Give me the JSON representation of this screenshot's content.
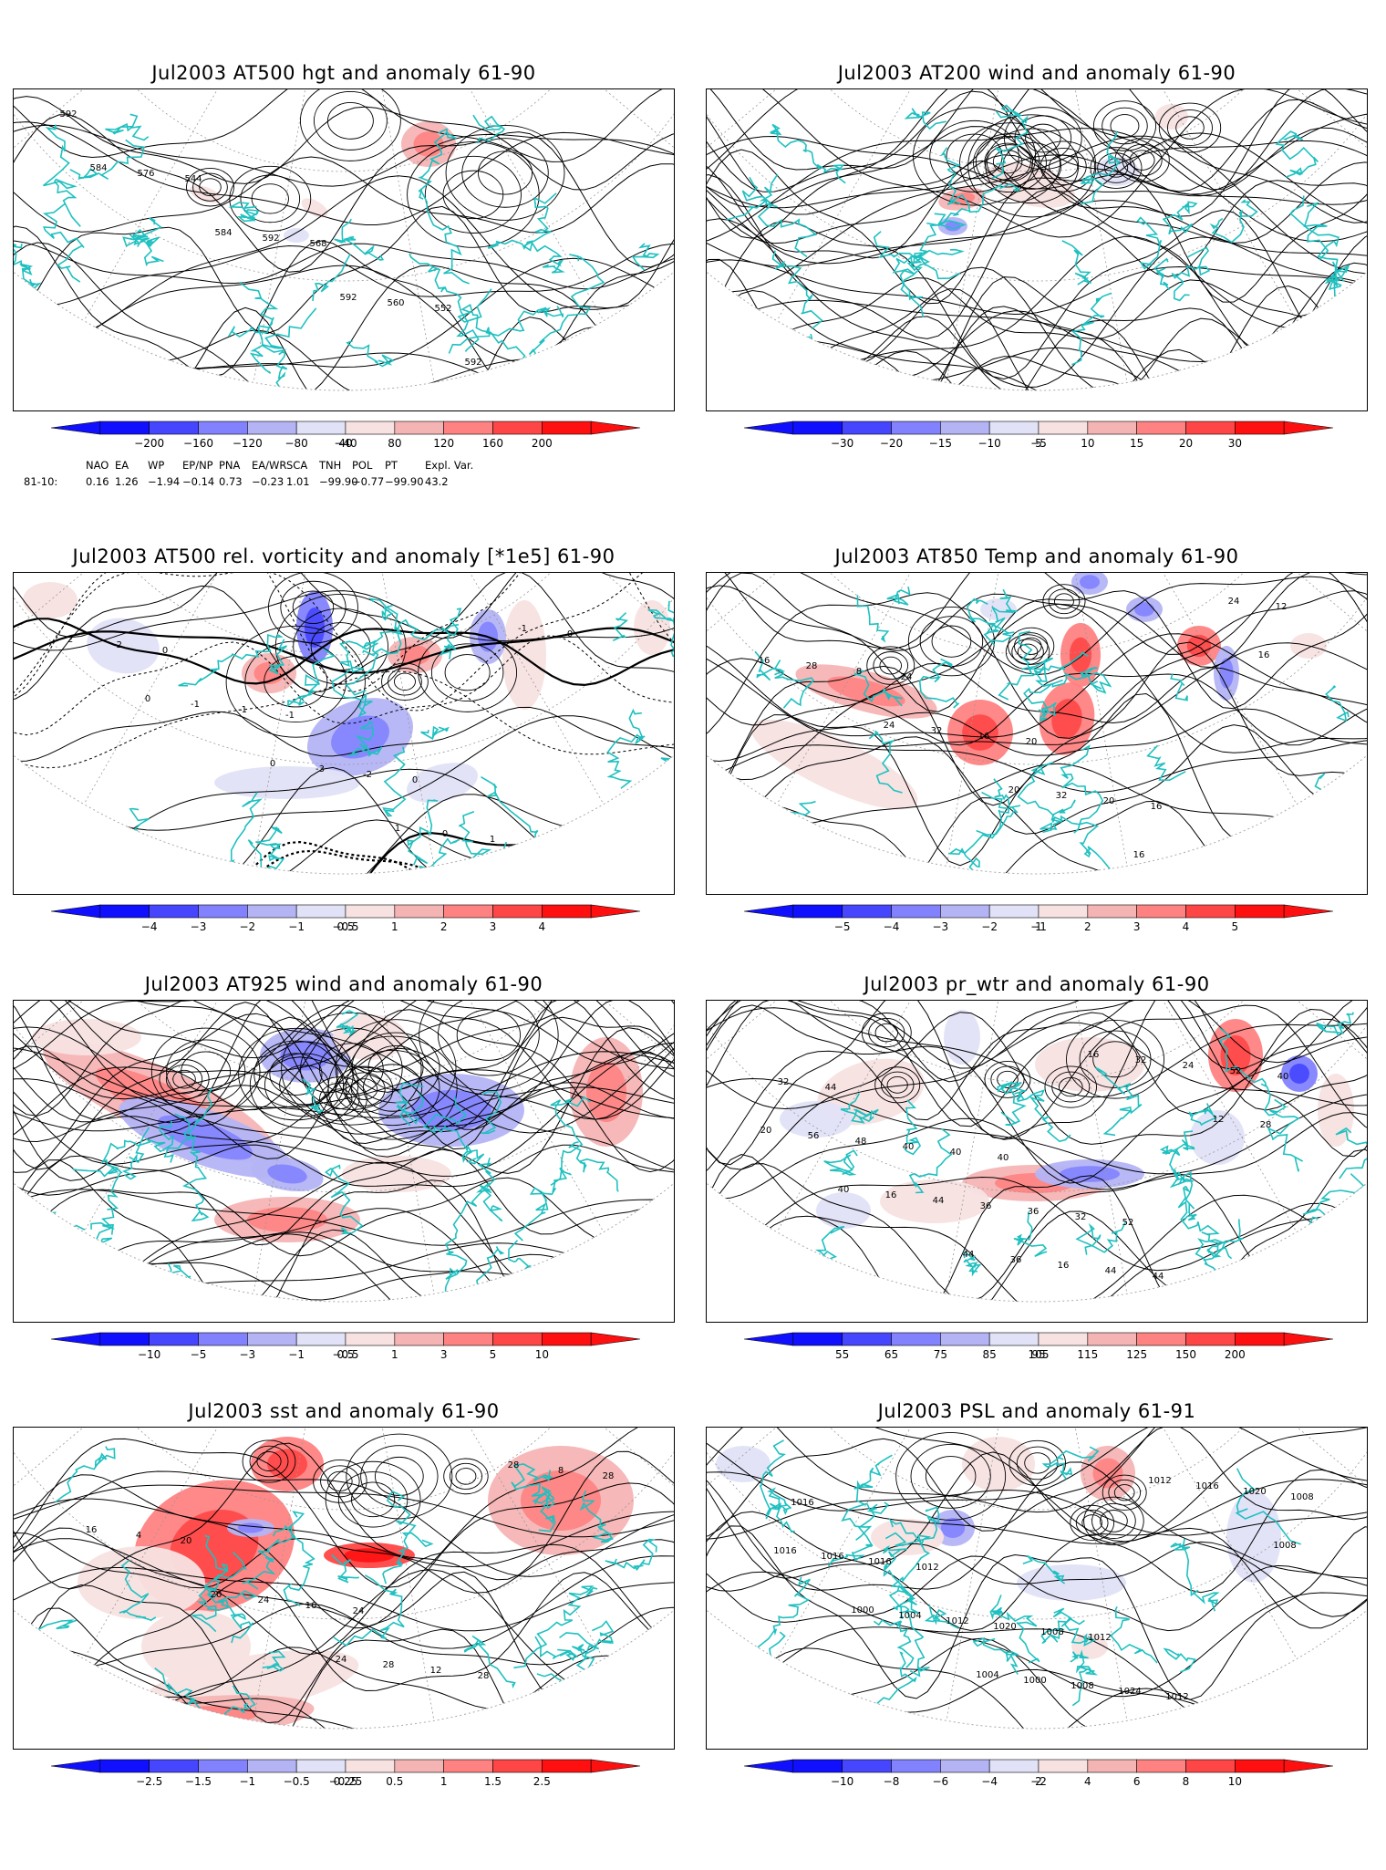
{
  "panels": [
    {
      "title": "Jul2003 AT500 hgt and anomaly 61-90",
      "colorbar": [
        "−200",
        "−160",
        "−120",
        "−80",
        "−40",
        "40",
        "80",
        "120",
        "160",
        "200"
      ],
      "contour_labels": [
        "592",
        "544",
        "568",
        "552",
        "552",
        "576",
        "592",
        "560",
        "576",
        "584",
        "584",
        "592",
        "592"
      ]
    },
    {
      "title": "Jul2003 AT200 wind and anomaly 61-90",
      "colorbar": [
        "−30",
        "−20",
        "−15",
        "−10",
        "−5",
        "5",
        "10",
        "15",
        "20",
        "30"
      ],
      "contour_labels": []
    },
    {
      "title": "Jul2003 AT500 rel. vorticity and anomaly [*1e5] 61-90",
      "colorbar": [
        "−4",
        "−3",
        "−2",
        "−1",
        "−0.5",
        "0.5",
        "1",
        "2",
        "3",
        "4"
      ],
      "contour_labels": [
        "0",
        "-1",
        "0",
        "2",
        "-2",
        "-1",
        "-2",
        "1",
        "2",
        "-1",
        "-3",
        "0",
        "0",
        "0",
        "0",
        "1",
        "-1"
      ]
    },
    {
      "title": "Jul2003 AT850 Temp and anomaly 61-90",
      "colorbar": [
        "−5",
        "−4",
        "−3",
        "−2",
        "−1",
        "1",
        "2",
        "3",
        "4",
        "5"
      ],
      "contour_labels": [
        "24",
        "20",
        "16",
        "12",
        "8",
        "16",
        "20",
        "24",
        "28",
        "32",
        "32",
        "28",
        "16",
        "24",
        "20",
        "16",
        "16"
      ]
    },
    {
      "title": "Jul2003 AT925 wind and anomaly 61-90",
      "colorbar": [
        "−10",
        "−5",
        "−3",
        "−1",
        "−0.5",
        "0.5",
        "1",
        "3",
        "5",
        "10"
      ],
      "contour_labels": []
    },
    {
      "title": "Jul2003 pr_wtr and anomaly 61-90",
      "colorbar": [
        "55",
        "65",
        "75",
        "85",
        "95",
        "105",
        "115",
        "125",
        "150",
        "200"
      ],
      "contour_labels": [
        "40",
        "52",
        "36",
        "44",
        "40",
        "32",
        "36",
        "32",
        "40",
        "36",
        "44",
        "40",
        "48",
        "36",
        "44",
        "52",
        "56",
        "44",
        "16",
        "24",
        "20",
        "16",
        "36",
        "32",
        "28",
        "40",
        "44",
        "16",
        "12"
      ]
    },
    {
      "title": "Jul2003 sst and anomaly 61-90",
      "colorbar": [
        "−2.5",
        "−1.5",
        "−1",
        "−0.5",
        "−0.25",
        "0.25",
        "0.5",
        "1",
        "1.5",
        "2.5"
      ],
      "contour_labels": [
        "24",
        "28",
        "28",
        "20",
        "16",
        "12",
        "8",
        "4",
        "24",
        "28",
        "28",
        "16",
        "20",
        "24"
      ]
    },
    {
      "title": "Jul2003 PSL and anomaly 61-91",
      "colorbar": [
        "−10",
        "−8",
        "−6",
        "−4",
        "−2",
        "2",
        "4",
        "6",
        "8",
        "10"
      ],
      "contour_labels": [
        "1012",
        "1016",
        "1016",
        "1012",
        "1008",
        "1012",
        "1008",
        "1016",
        "1020",
        "1024",
        "1020",
        "1016",
        "1012",
        "1008",
        "1016",
        "1016",
        "1004",
        "1000",
        "1012",
        "1008",
        "1000",
        "1004"
      ]
    }
  ],
  "teleconnections": {
    "headers": [
      "NAO",
      "EA",
      "WP",
      "EP/NP",
      "PNA",
      "EA/WR",
      "SCA",
      "TNH",
      "POL",
      "PT",
      "Expl. Var."
    ],
    "row_label": "81-10:",
    "values": [
      "0.16",
      "1.26",
      "−1.94",
      "−0.14",
      "0.73",
      "−0.23",
      "1.01",
      "−99.90",
      "−0.77",
      "−99.90",
      "43.2"
    ]
  },
  "colors": {
    "negative": [
      "#1010ff",
      "#4646ff",
      "#8282ff",
      "#b4b4f5",
      "#e1e1f8"
    ],
    "positive": [
      "#f8e1e1",
      "#f5b4b4",
      "#ff8282",
      "#ff4646",
      "#ff1010"
    ],
    "coastline": "#20c0c0"
  },
  "chart_data": [
    {
      "type": "heatmap",
      "title": "Jul2003 AT500 hgt and anomaly 61-90",
      "legend_levels": [
        -200,
        -160,
        -120,
        -80,
        -40,
        40,
        80,
        120,
        160,
        200
      ]
    },
    {
      "type": "heatmap",
      "title": "Jul2003 AT200 wind and anomaly 61-90",
      "legend_levels": [
        -30,
        -20,
        -15,
        -10,
        -5,
        5,
        10,
        15,
        20,
        30
      ]
    },
    {
      "type": "heatmap",
      "title": "Jul2003 AT500 rel. vorticity and anomaly [*1e5] 61-90",
      "legend_levels": [
        -4,
        -3,
        -2,
        -1,
        -0.5,
        0.5,
        1,
        2,
        3,
        4
      ]
    },
    {
      "type": "heatmap",
      "title": "Jul2003 AT850 Temp and anomaly 61-90",
      "legend_levels": [
        -5,
        -4,
        -3,
        -2,
        -1,
        1,
        2,
        3,
        4,
        5
      ]
    },
    {
      "type": "heatmap",
      "title": "Jul2003 AT925 wind and anomaly 61-90",
      "legend_levels": [
        -10,
        -5,
        -3,
        -1,
        -0.5,
        0.5,
        1,
        3,
        5,
        10
      ]
    },
    {
      "type": "heatmap",
      "title": "Jul2003 pr_wtr and anomaly 61-90",
      "legend_levels": [
        55,
        65,
        75,
        85,
        95,
        105,
        115,
        125,
        150,
        200
      ]
    },
    {
      "type": "heatmap",
      "title": "Jul2003 sst and anomaly 61-90",
      "legend_levels": [
        -2.5,
        -1.5,
        -1,
        -0.5,
        -0.25,
        0.25,
        0.5,
        1,
        1.5,
        2.5
      ]
    },
    {
      "type": "heatmap",
      "title": "Jul2003 PSL and anomaly 61-91",
      "legend_levels": [
        -10,
        -8,
        -6,
        -4,
        -2,
        2,
        4,
        6,
        8,
        10
      ]
    }
  ]
}
